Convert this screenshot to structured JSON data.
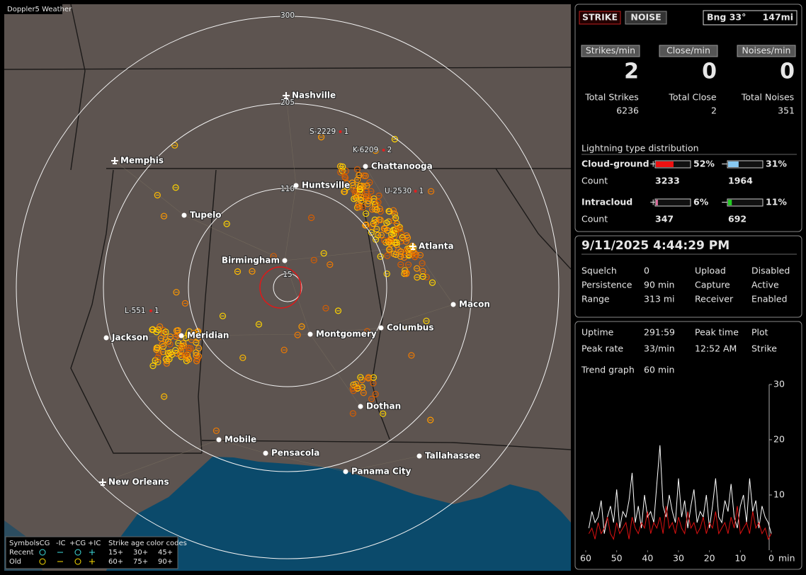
{
  "map": {
    "title": "Doppler5 Weather",
    "ring_labels": [
      "300",
      "205",
      "110",
      "15"
    ],
    "cities": [
      "Nashville",
      "Memphis",
      "Chattanooga",
      "Huntsville",
      "Tupelo",
      "Birmingham",
      "Atlanta",
      "Macon",
      "Jackson",
      "Meridian",
      "Montgomery",
      "Columbus",
      "Dothan",
      "Mobile",
      "Pensacola",
      "Tallahassee",
      "Panama City",
      "New Orleans"
    ],
    "storms": [
      {
        "id": "S-2229",
        "count": "1"
      },
      {
        "id": "K-6209",
        "count": "2"
      },
      {
        "id": "U-2530",
        "count": "1"
      },
      {
        "id": "L-551",
        "count": "1"
      }
    ],
    "legend": {
      "headers": [
        "Symbols",
        "-CG",
        "-IC",
        "+CG",
        "+IC"
      ],
      "age_title": "Strike age color codes",
      "rows": [
        {
          "label": "Recent",
          "ages": [
            "15+",
            "30+",
            "45+"
          ]
        },
        {
          "label": "Old",
          "ages": [
            "60+",
            "75+",
            "90+"
          ]
        }
      ]
    }
  },
  "panel": {
    "modes": [
      "STRIKE",
      "NOISE"
    ],
    "bearing": "Bng 33°",
    "distance": "147mi",
    "rates": [
      {
        "label": "Strikes/min",
        "value": "2",
        "total_label": "Total Strikes",
        "total": "6236"
      },
      {
        "label": "Close/min",
        "value": "0",
        "total_label": "Total Close",
        "total": "2"
      },
      {
        "label": "Noises/min",
        "value": "0",
        "total_label": "Total Noises",
        "total": "351"
      }
    ],
    "distribution": {
      "title": "Lightning type distribution",
      "rows": [
        {
          "label": "Cloud-ground",
          "pos_sign": "+",
          "pos": {
            "value": 52,
            "label": "52%"
          },
          "neg_sign": "−",
          "neg": {
            "value": 31,
            "label": "31%"
          },
          "count_label": "Count",
          "pos_count": "3233",
          "neg_count": "1964"
        },
        {
          "label": "Intracloud",
          "pos_sign": "+",
          "pos": {
            "value": 6,
            "label": "6%"
          },
          "neg_sign": "−",
          "neg": {
            "value": 11,
            "label": "11%"
          },
          "count_label": "Count",
          "pos_count": "347",
          "neg_count": "692"
        }
      ]
    },
    "status": {
      "datetime": "9/11/2025 4:44:29 PM",
      "items": [
        [
          "Squelch",
          "0",
          "Upload",
          "Disabled"
        ],
        [
          "Persistence",
          "90 min",
          "Capture",
          "Active"
        ],
        [
          "Range",
          "313 mi",
          "Receiver",
          "Enabled"
        ]
      ]
    },
    "stats": {
      "items": [
        [
          "Uptime",
          "291:59",
          "Peak time",
          "Plot"
        ],
        [
          "Peak rate",
          "33/min",
          "12:52 AM",
          "Strike"
        ]
      ],
      "trend_label": "Trend graph",
      "trend_value": "60 min"
    }
  },
  "chart_data": {
    "type": "line",
    "x": [
      59,
      58,
      57,
      56,
      55,
      54,
      53,
      52,
      51,
      50,
      49,
      48,
      47,
      46,
      45,
      44,
      43,
      42,
      41,
      40,
      39,
      38,
      37,
      36,
      35,
      34,
      33,
      32,
      31,
      30,
      29,
      28,
      27,
      26,
      25,
      24,
      23,
      22,
      21,
      20,
      19,
      18,
      17,
      16,
      15,
      14,
      13,
      12,
      11,
      10,
      9,
      8,
      7,
      6,
      5,
      4,
      3,
      2,
      1,
      0
    ],
    "xlim": [
      60,
      0
    ],
    "xticks": [
      60,
      50,
      40,
      30,
      20,
      10,
      0
    ],
    "xlabel": "min",
    "ylim": [
      0,
      30
    ],
    "yticks": [
      30,
      20,
      10
    ],
    "series": [
      {
        "color": "#ffffff",
        "values": [
          4,
          7,
          5,
          6,
          9,
          3,
          6,
          8,
          5,
          11,
          4,
          7,
          6,
          9,
          14,
          5,
          8,
          4,
          10,
          6,
          7,
          5,
          12,
          19,
          8,
          6,
          10,
          7,
          5,
          13,
          6,
          9,
          4,
          8,
          11,
          5,
          7,
          6,
          10,
          4,
          8,
          13,
          6,
          5,
          9,
          7,
          12,
          6,
          4,
          8,
          10,
          5,
          13,
          7,
          9,
          4,
          8,
          6,
          5,
          3
        ]
      },
      {
        "color": "#dd1111",
        "values": [
          3,
          4,
          2,
          5,
          3,
          4,
          6,
          3,
          2,
          5,
          3,
          4,
          5,
          2,
          6,
          4,
          3,
          5,
          4,
          7,
          3,
          5,
          4,
          6,
          3,
          8,
          4,
          5,
          3,
          6,
          4,
          3,
          7,
          4,
          5,
          3,
          4,
          6,
          3,
          5,
          4,
          7,
          3,
          4,
          5,
          3,
          6,
          4,
          8,
          3,
          4,
          5,
          3,
          7,
          4,
          5,
          3,
          4,
          2,
          3
        ]
      }
    ]
  }
}
